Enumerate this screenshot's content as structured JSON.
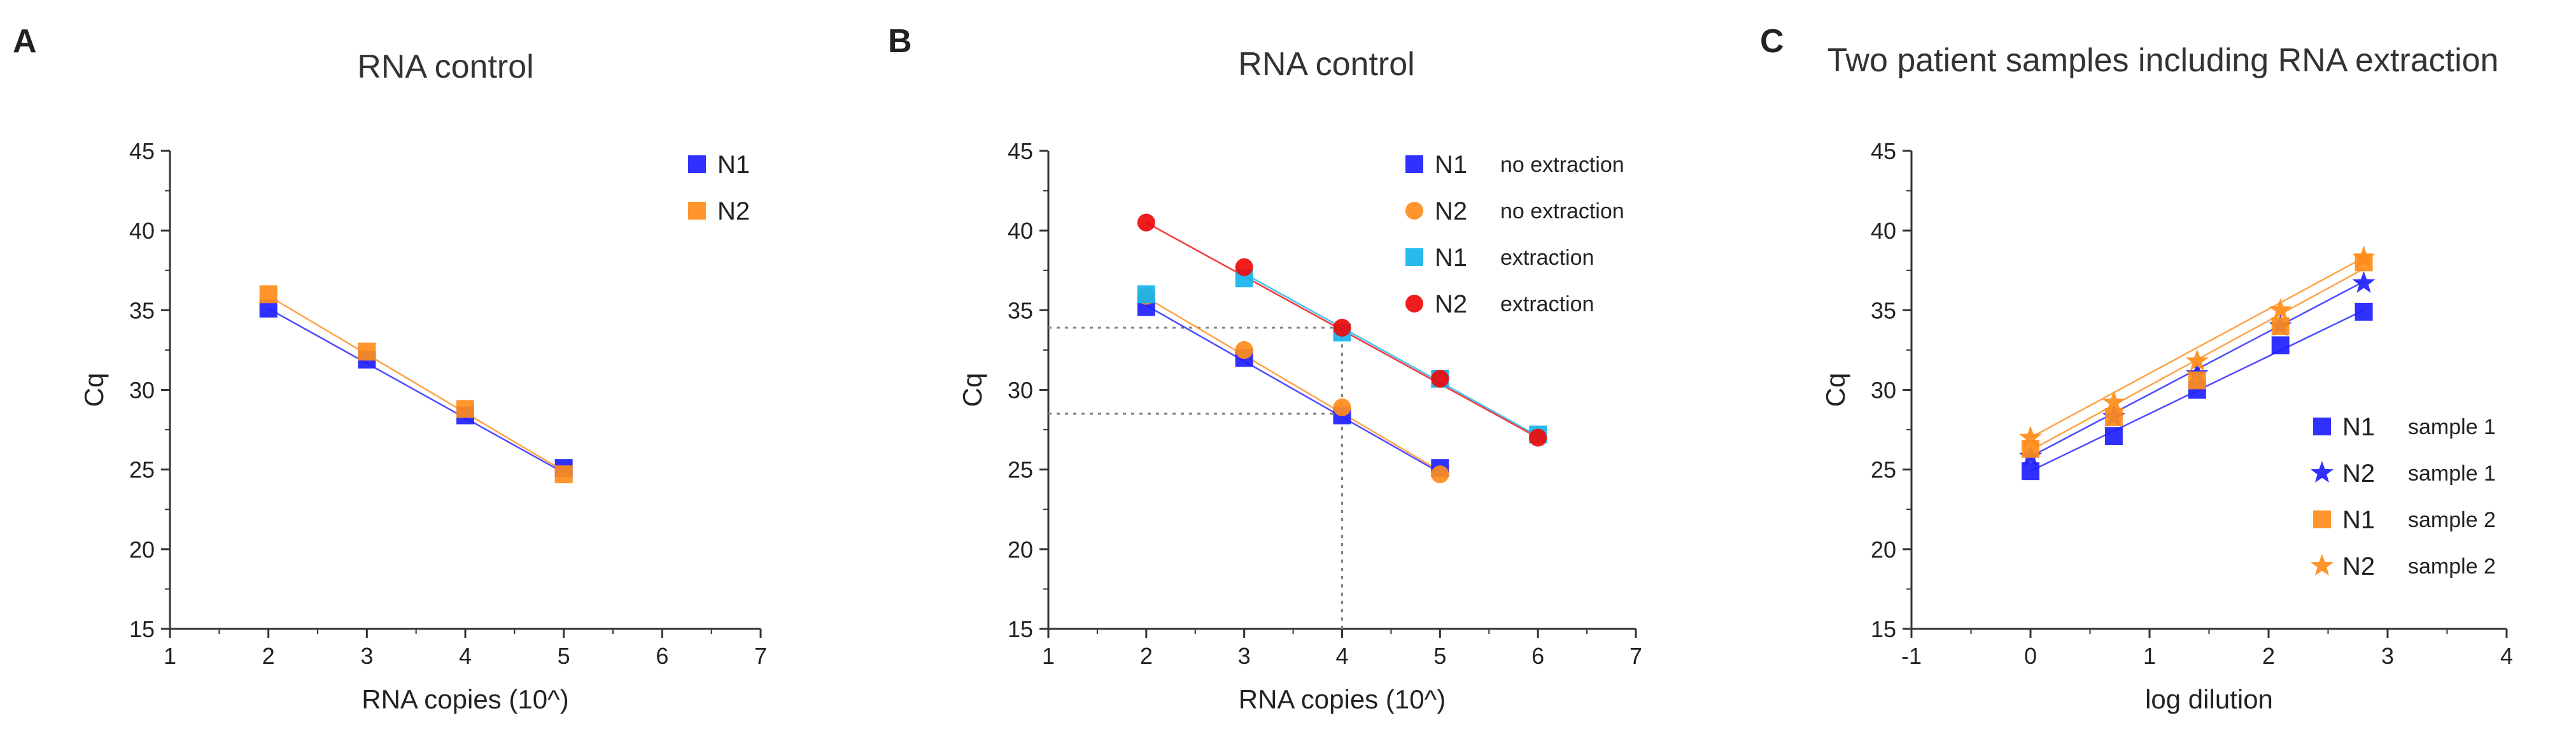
{
  "colors": {
    "blue": "#1f1fff",
    "orange": "#ff8c1a",
    "cyan": "#16b4ee",
    "red": "#ee0a0a",
    "axis": "#333333",
    "guide": "#808080"
  },
  "chart_data": [
    {
      "type": "scatter",
      "letter": "A",
      "title": "RNA control",
      "xlabel": "RNA copies (10^)",
      "ylabel": "Cq",
      "xlim": [
        1,
        7
      ],
      "ylim": [
        15,
        45
      ],
      "x_ticks": [
        "1",
        "2",
        "3",
        "4",
        "5",
        "6",
        "7"
      ],
      "y_ticks": [
        "15",
        "20",
        "25",
        "30",
        "35",
        "40",
        "45"
      ],
      "legend": "top-right",
      "series": [
        {
          "name": "N1",
          "sub": "",
          "color": "#1f1fff",
          "marker": "square",
          "x": [
            2,
            3,
            4,
            5
          ],
          "y": [
            35.1,
            31.9,
            28.4,
            25.1
          ],
          "fit": [
            [
              2,
              35.1
            ],
            [
              5,
              24.8
            ]
          ]
        },
        {
          "name": "N2",
          "sub": "",
          "color": "#ff8c1a",
          "marker": "square",
          "x": [
            2,
            3,
            4,
            5
          ],
          "y": [
            36.0,
            32.4,
            28.8,
            24.7
          ],
          "fit": [
            [
              2,
              35.9
            ],
            [
              5,
              24.9
            ]
          ]
        }
      ],
      "guides": []
    },
    {
      "type": "scatter",
      "letter": "B",
      "title": "RNA control",
      "xlabel": "RNA copies (10^)",
      "ylabel": "Cq",
      "xlim": [
        1,
        7
      ],
      "ylim": [
        15,
        45
      ],
      "x_ticks": [
        "1",
        "2",
        "3",
        "4",
        "5",
        "6",
        "7"
      ],
      "y_ticks": [
        "15",
        "20",
        "25",
        "30",
        "35",
        "40",
        "45"
      ],
      "legend": "top-right",
      "series": [
        {
          "name": "N1",
          "sub": "no extraction",
          "color": "#1f1fff",
          "marker": "square",
          "x": [
            2,
            3,
            4,
            5
          ],
          "y": [
            35.2,
            32.0,
            28.4,
            25.1
          ],
          "fit": [
            [
              2,
              35.3
            ],
            [
              5,
              24.8
            ]
          ]
        },
        {
          "name": "N2",
          "sub": "no extraction",
          "color": "#ff8c1a",
          "marker": "circle",
          "x": [
            2,
            3,
            4,
            5
          ],
          "y": [
            35.9,
            32.5,
            28.9,
            24.7
          ],
          "fit": [
            [
              2,
              35.8
            ],
            [
              5,
              24.9
            ]
          ]
        },
        {
          "name": "N1",
          "sub": "extraction",
          "color": "#16b4ee",
          "marker": "square",
          "x": [
            2,
            3,
            4,
            5,
            6
          ],
          "y": [
            36.0,
            37.0,
            33.6,
            30.7,
            27.2
          ],
          "fit": [
            [
              3,
              37.3
            ],
            [
              6,
              27.1
            ]
          ]
        },
        {
          "name": "N2",
          "sub": "extraction",
          "color": "#ee0a0a",
          "marker": "circle",
          "x": [
            2,
            3,
            4,
            5,
            6
          ],
          "y": [
            40.5,
            37.7,
            33.9,
            30.7,
            27.0
          ],
          "fit": [
            [
              2,
              40.5
            ],
            [
              6,
              27.0
            ]
          ]
        }
      ],
      "guides": [
        {
          "from": [
            1,
            33.9
          ],
          "to": [
            4,
            33.9
          ]
        },
        {
          "from": [
            1,
            28.5
          ],
          "to": [
            4,
            28.5
          ]
        },
        {
          "from": [
            4,
            15
          ],
          "to": [
            4,
            33.9
          ]
        }
      ]
    },
    {
      "type": "scatter",
      "letter": "C",
      "title": "Two patient samples including RNA extraction",
      "xlabel": "log dilution",
      "ylabel": "Cq",
      "xlim": [
        -1,
        4
      ],
      "ylim": [
        15,
        45
      ],
      "x_ticks": [
        "-1",
        "0",
        "1",
        "2",
        "3",
        "4"
      ],
      "y_ticks": [
        "15",
        "20",
        "25",
        "30",
        "35",
        "40",
        "45"
      ],
      "legend": "bottom-right",
      "series": [
        {
          "name": "N1",
          "sub": "sample 1",
          "color": "#1f1fff",
          "marker": "square",
          "x": [
            0,
            0.7,
            1.4,
            2.1,
            2.8
          ],
          "y": [
            24.9,
            27.1,
            30.0,
            32.8,
            34.9
          ],
          "fit": [
            [
              0,
              24.9
            ],
            [
              2.8,
              35.0
            ]
          ]
        },
        {
          "name": "N2",
          "sub": "sample 1",
          "color": "#1f1fff",
          "marker": "star",
          "x": [
            0,
            0.7,
            1.4,
            2.1,
            2.8
          ],
          "y": [
            25.8,
            28.3,
            31.0,
            34.0,
            36.7
          ],
          "fit": [
            [
              0,
              25.8
            ],
            [
              2.8,
              36.8
            ]
          ]
        },
        {
          "name": "N1",
          "sub": "sample 2",
          "color": "#ff8c1a",
          "marker": "square",
          "x": [
            0,
            0.7,
            1.4,
            2.1,
            2.8
          ],
          "y": [
            26.3,
            28.3,
            30.6,
            34.0,
            38.0
          ],
          "fit": [
            [
              0,
              26.2
            ],
            [
              2.8,
              37.6
            ]
          ]
        },
        {
          "name": "N2",
          "sub": "sample 2",
          "color": "#ff8c1a",
          "marker": "star",
          "x": [
            0,
            0.7,
            1.4,
            2.1,
            2.8
          ],
          "y": [
            27.0,
            29.2,
            31.8,
            35.0,
            38.3
          ],
          "fit": [
            [
              0,
              27.0
            ],
            [
              2.8,
              38.3
            ]
          ]
        }
      ],
      "guides": []
    }
  ]
}
